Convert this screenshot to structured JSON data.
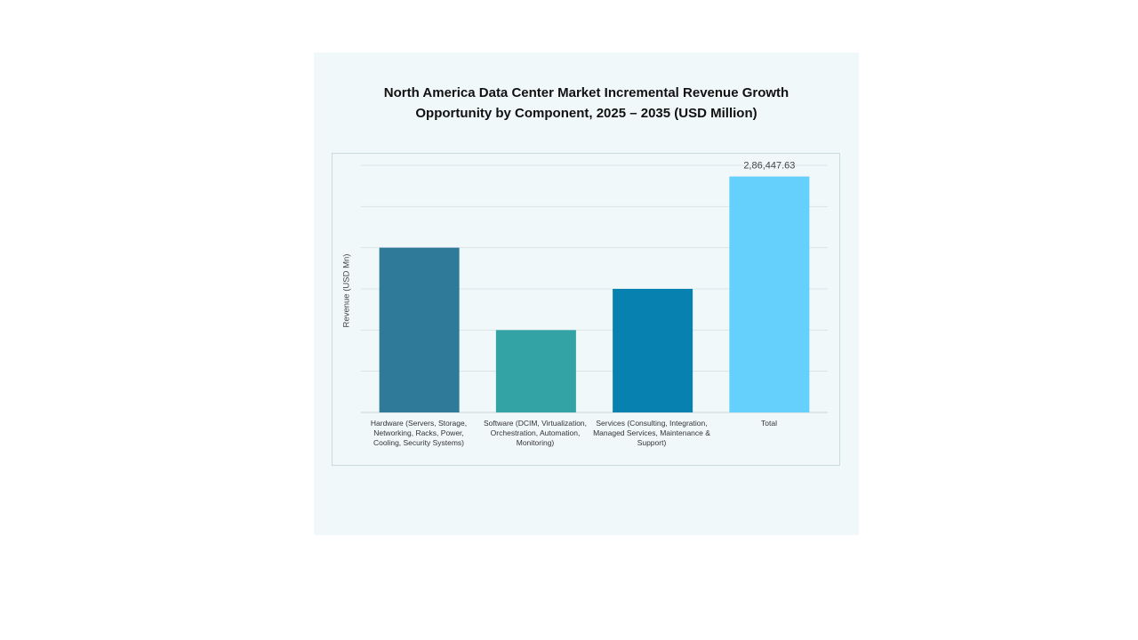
{
  "chart_data": {
    "type": "bar",
    "title_lines": [
      "North America Data Center Market Incremental Revenue Growth",
      "Opportunity by Component, 2025 – 2035 (USD Million)"
    ],
    "ylabel": "Revenue (USD Mn)",
    "xlabel": "",
    "categories": [
      "Hardware (Servers, Storage, Networking, Racks, Power, Cooling, Security Systems)",
      "Software (DCIM, Virtualization, Orchestration, Automation, Monitoring)",
      "Services (Consulting, Integration, Managed Services, Maintenance & Support)",
      "Total"
    ],
    "values": [
      200000,
      100000,
      150000,
      286447.63
    ],
    "data_labels": [
      "",
      "",
      "",
      "2,86,447.63"
    ],
    "colors": [
      "#2f7a98",
      "#33a3a6",
      "#0782b0",
      "#65d0fb"
    ],
    "ylim": [
      0,
      300000
    ],
    "y_gridlines": [
      0,
      50000,
      100000,
      150000,
      200000,
      250000,
      300000
    ],
    "grid": true,
    "legend": "none"
  }
}
